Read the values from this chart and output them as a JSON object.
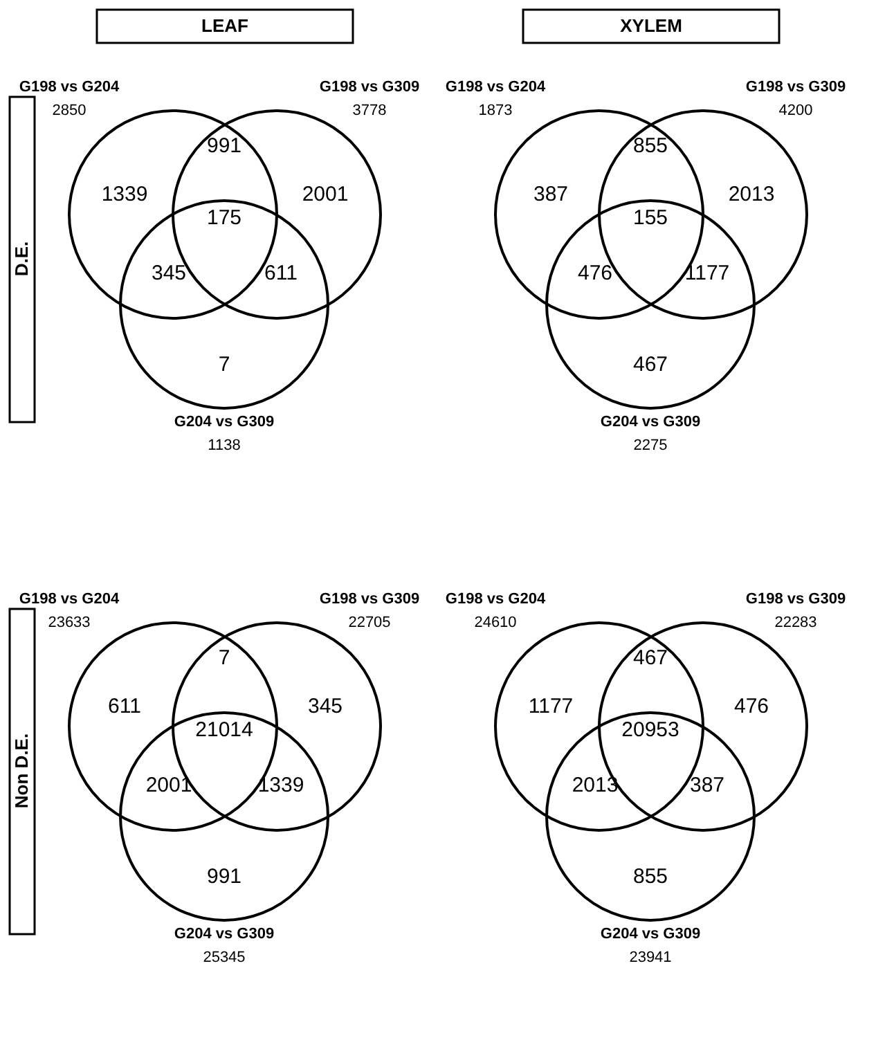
{
  "chart_data": [
    {
      "type": "other",
      "title": "LEAF",
      "ylabel": "D.E.",
      "categories": [
        "G198 vs G204",
        "G198 vs G309",
        "G204 vs G309"
      ],
      "values": [
        2850,
        3778,
        1138
      ],
      "data_labels": true,
      "annotations": [
        "1339",
        "991",
        "2001",
        "175",
        "345",
        "611",
        "7"
      ]
    },
    {
      "type": "other",
      "title": "XYLEM",
      "categories": [
        "G198 vs G204",
        "G198 vs G309",
        "G204 vs G309"
      ],
      "values": [
        1873,
        4200,
        2275
      ],
      "data_labels": true,
      "annotations": [
        "387",
        "855",
        "2013",
        "155",
        "476",
        "1177",
        "467"
      ]
    },
    {
      "type": "other",
      "ylabel": "Non D.E.",
      "categories": [
        "G198 vs G204",
        "G198 vs G309",
        "G204 vs G309"
      ],
      "values": [
        23633,
        22705,
        25345
      ],
      "data_labels": true,
      "annotations": [
        "611",
        "7",
        "345",
        "21014",
        "2001",
        "1339",
        "991"
      ]
    },
    {
      "type": "other",
      "categories": [
        "G198 vs G204",
        "G198 vs G309",
        "G204 vs G309"
      ],
      "values": [
        24610,
        22283,
        23941
      ],
      "data_labels": true,
      "annotations": [
        "1177",
        "467",
        "476",
        "20953",
        "2013",
        "387",
        "855"
      ]
    }
  ]
}
